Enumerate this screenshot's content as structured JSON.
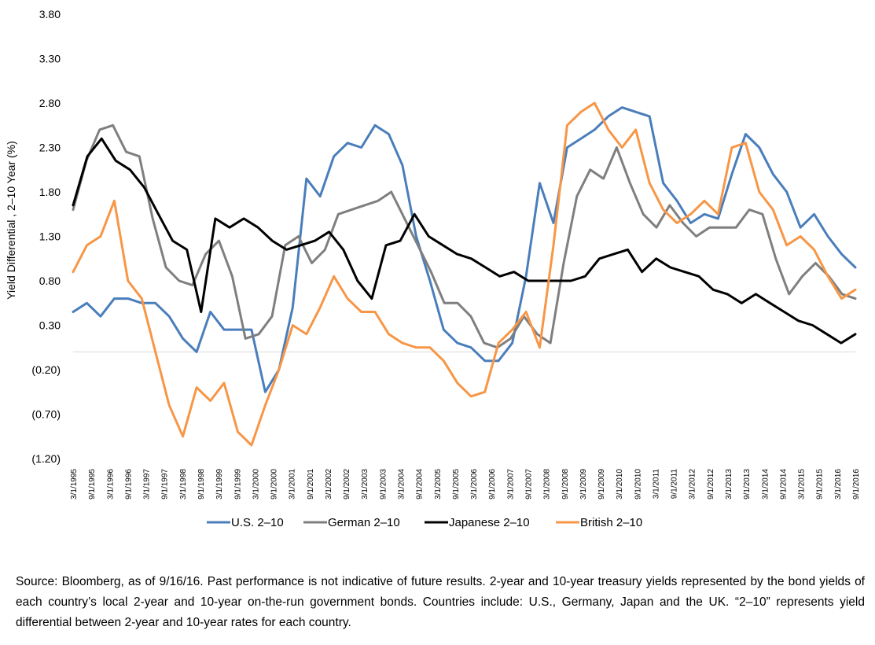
{
  "chart_data": {
    "type": "line",
    "title": "",
    "xlabel": "",
    "ylabel": "Yield Differential , 2–10 Year (%)",
    "ylim": [
      -1.2,
      3.8
    ],
    "y_ticks": [
      "3.80",
      "3.30",
      "2.80",
      "2.30",
      "1.80",
      "1.30",
      "0.80",
      "0.30",
      "(0.20)",
      "(0.70)",
      "(1.20)"
    ],
    "x_ticks": [
      "3/1/1995",
      "9/1/1995",
      "3/1/1996",
      "9/1/1996",
      "3/1/1997",
      "9/1/1997",
      "3/1/1998",
      "9/1/1998",
      "3/1/1999",
      "9/1/1999",
      "3/1/2000",
      "9/1/2000",
      "3/1/2001",
      "9/1/2001",
      "3/1/2002",
      "9/1/2002",
      "3/1/2003",
      "9/1/2003",
      "3/1/2004",
      "9/1/2004",
      "3/1/2005",
      "9/1/2005",
      "3/1/2006",
      "9/1/2006",
      "3/1/2007",
      "9/1/2007",
      "3/1/2008",
      "9/1/2008",
      "3/1/2009",
      "9/1/2009",
      "3/1/2010",
      "9/1/2010",
      "3/1/2011",
      "9/1/2011",
      "3/1/2012",
      "9/1/2012",
      "3/1/2013",
      "9/1/2013",
      "3/1/2014",
      "9/1/2014",
      "3/1/2015",
      "9/1/2015",
      "3/1/2016",
      "9/1/2016"
    ],
    "x_start": 1995.17,
    "x_step": 0.5,
    "grid": false,
    "zero_line": true,
    "legend_position": "bottom",
    "series": [
      {
        "name": "U.S. 2–10",
        "color": "#4a7ebb",
        "values": [
          0.45,
          0.55,
          0.4,
          0.6,
          0.6,
          0.55,
          0.55,
          0.4,
          0.15,
          0.0,
          0.45,
          0.25,
          0.25,
          0.25,
          -0.45,
          -0.2,
          0.5,
          1.95,
          1.75,
          2.2,
          2.35,
          2.3,
          2.55,
          2.45,
          2.1,
          1.3,
          0.8,
          0.25,
          0.1,
          0.05,
          -0.1,
          -0.1,
          0.1,
          0.85,
          1.9,
          1.45,
          2.3,
          2.4,
          2.5,
          2.65,
          2.75,
          2.7,
          2.65,
          1.9,
          1.7,
          1.45,
          1.55,
          1.5,
          2.0,
          2.45,
          2.3,
          2.0,
          1.8,
          1.4,
          1.55,
          1.3,
          1.1,
          0.95
        ]
      },
      {
        "name": "German 2–10",
        "color": "#7f7f7f",
        "values": [
          1.6,
          2.15,
          2.5,
          2.55,
          2.25,
          2.2,
          1.5,
          0.95,
          0.8,
          0.75,
          1.1,
          1.25,
          0.85,
          0.15,
          0.2,
          0.4,
          1.2,
          1.3,
          1.0,
          1.15,
          1.55,
          1.6,
          1.65,
          1.7,
          1.8,
          1.5,
          1.2,
          0.9,
          0.55,
          0.55,
          0.4,
          0.1,
          0.05,
          0.15,
          0.4,
          0.2,
          0.1,
          1.0,
          1.75,
          2.05,
          1.95,
          2.3,
          1.9,
          1.55,
          1.4,
          1.65,
          1.45,
          1.3,
          1.4,
          1.4,
          1.4,
          1.6,
          1.55,
          1.05,
          0.65,
          0.85,
          1.0,
          0.85,
          0.65,
          0.6
        ]
      },
      {
        "name": "Japanese 2–10",
        "color": "#000000",
        "values": [
          1.65,
          2.2,
          2.4,
          2.15,
          2.05,
          1.85,
          1.55,
          1.25,
          1.15,
          0.45,
          1.5,
          1.4,
          1.5,
          1.4,
          1.25,
          1.15,
          1.2,
          1.25,
          1.35,
          1.15,
          0.8,
          0.6,
          1.2,
          1.25,
          1.55,
          1.3,
          1.2,
          1.1,
          1.05,
          0.95,
          0.85,
          0.9,
          0.8,
          0.8,
          0.8,
          0.8,
          0.85,
          1.05,
          1.1,
          1.15,
          0.9,
          1.05,
          0.95,
          0.9,
          0.85,
          0.7,
          0.65,
          0.55,
          0.65,
          0.55,
          0.45,
          0.35,
          0.3,
          0.2,
          0.1,
          0.2
        ]
      },
      {
        "name": "British 2–10",
        "color": "#f79646",
        "values": [
          0.9,
          1.2,
          1.3,
          1.7,
          0.8,
          0.6,
          0.0,
          -0.6,
          -0.95,
          -0.4,
          -0.55,
          -0.35,
          -0.9,
          -1.05,
          -0.6,
          -0.2,
          0.3,
          0.2,
          0.5,
          0.85,
          0.6,
          0.45,
          0.45,
          0.2,
          0.1,
          0.05,
          0.05,
          -0.1,
          -0.35,
          -0.5,
          -0.45,
          0.1,
          0.25,
          0.45,
          0.05,
          1.2,
          2.55,
          2.7,
          2.8,
          2.5,
          2.3,
          2.5,
          1.9,
          1.6,
          1.45,
          1.55,
          1.7,
          1.55,
          2.3,
          2.35,
          1.8,
          1.6,
          1.2,
          1.3,
          1.15,
          0.85,
          0.6,
          0.7
        ]
      }
    ]
  },
  "source_note": "Source: Bloomberg, as of 9/16/16. Past performance is not indicative of future results. 2-year and 10-year treasury yields represented by the bond yields of each country’s local 2-year and 10-year on-the-run government bonds. Countries include: U.S., Germany, Japan and the UK. “2–10” represents yield differential between 2-year and 10-year rates for each country."
}
